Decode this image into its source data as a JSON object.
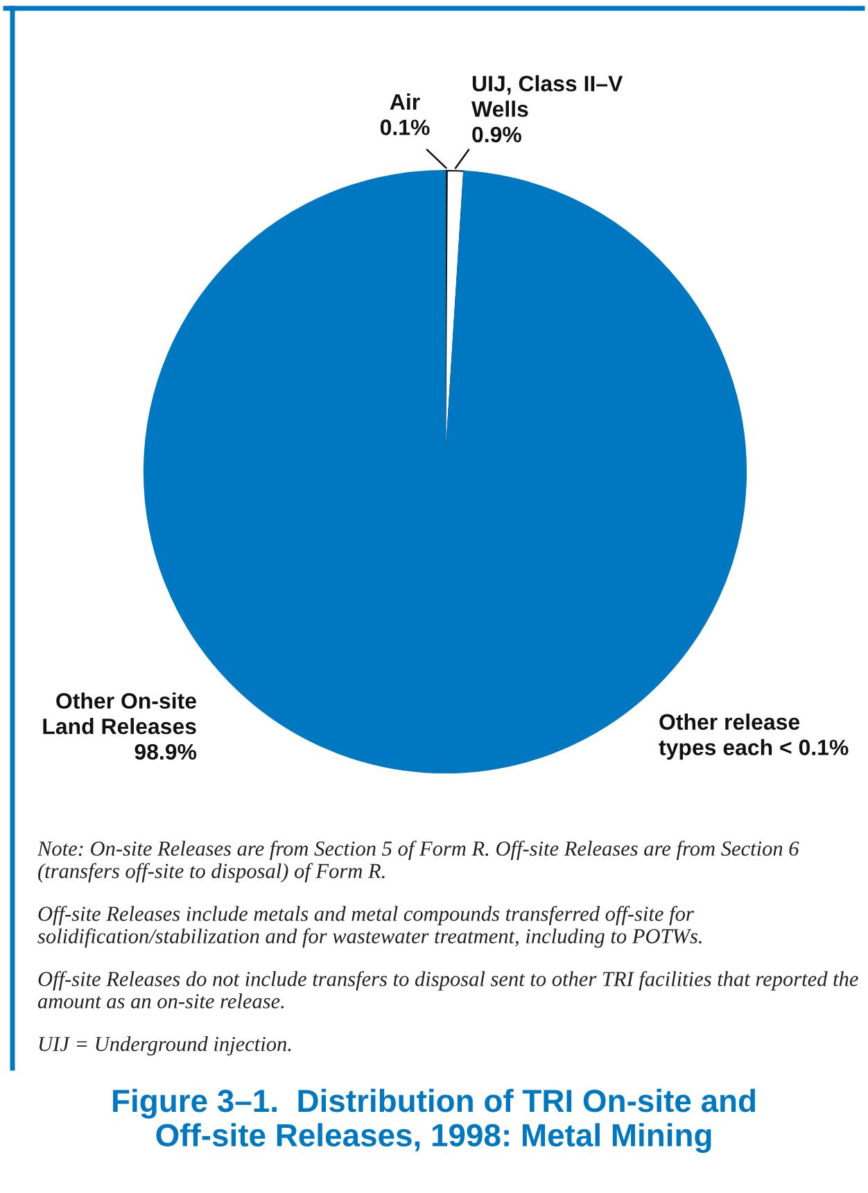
{
  "chart_data": {
    "type": "pie",
    "title": "Figure 3–1.  Distribution of TRI On-site and Off-site Releases, 1998: Metal Mining",
    "categories": [
      "Air",
      "UIJ, Class II–V Wells",
      "Other On-site Land Releases"
    ],
    "values": [
      0.1,
      0.9,
      98.9
    ],
    "value_labels": [
      "0.1%",
      "0.9%",
      "98.9%"
    ],
    "colors": [
      "#111111",
      "#ffffff",
      "#0078c1"
    ],
    "annotations": [
      "Other release types each < 0.1%",
      "Note: On-site Releases are from Section 5 of Form R. Off-site Releases are from Section 6 (transfers off-site to disposal) of Form R.",
      "Off-site Releases include metals and metal compounds transferred off-site for solidification/stabilization and for wastewater treatment, including to POTWs.",
      "Off-site Releases do not include transfers to disposal sent to other TRI facilities that reported the amount as an on-site release.",
      "UIJ = Underground injection."
    ]
  }
}
